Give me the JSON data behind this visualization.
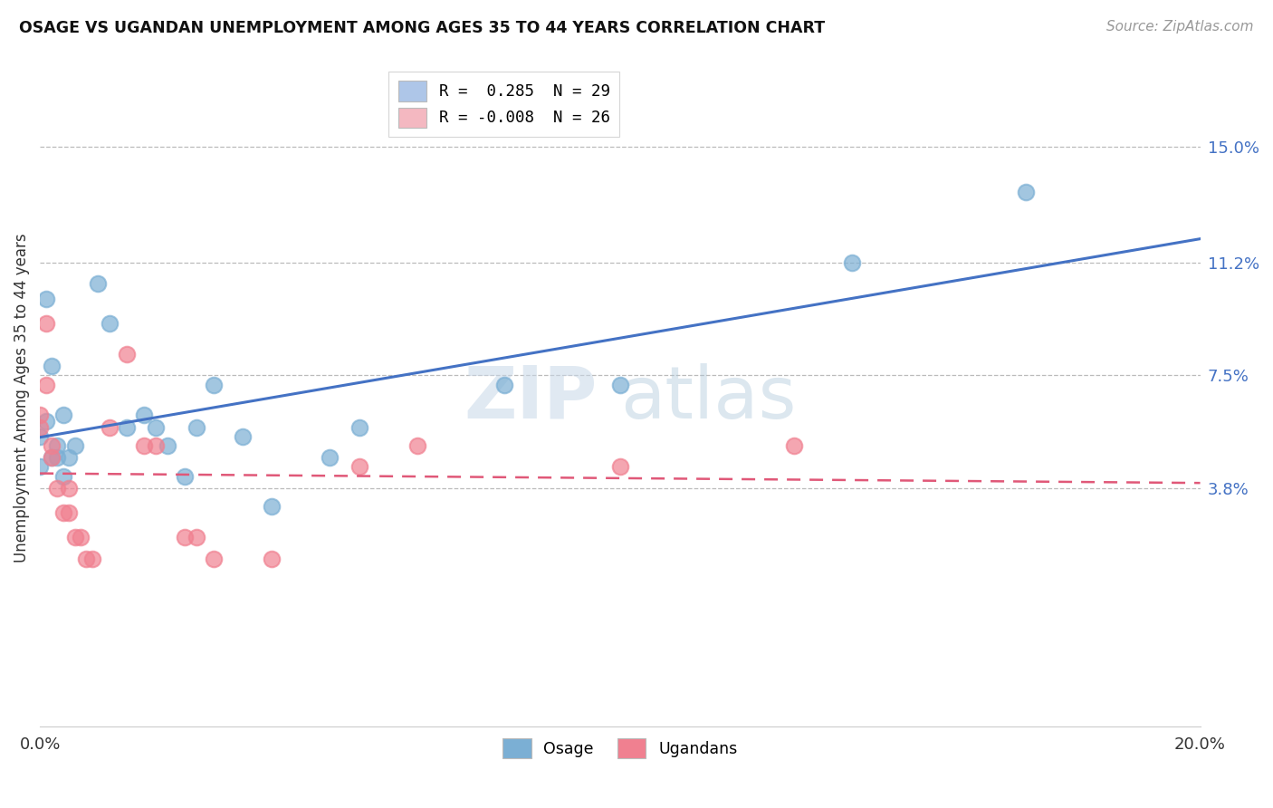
{
  "title": "OSAGE VS UGANDAN UNEMPLOYMENT AMONG AGES 35 TO 44 YEARS CORRELATION CHART",
  "source": "Source: ZipAtlas.com",
  "ylabel": "Unemployment Among Ages 35 to 44 years",
  "ytick_vals": [
    0.038,
    0.075,
    0.112,
    0.15
  ],
  "ytick_labels": [
    "3.8%",
    "7.5%",
    "11.2%",
    "15.0%"
  ],
  "xtick_vals": [
    0.0,
    0.2
  ],
  "xtick_labels": [
    "0.0%",
    "20.0%"
  ],
  "xlim": [
    0.0,
    0.2
  ],
  "ylim": [
    -0.04,
    0.175
  ],
  "legend_entries": [
    {
      "label": "R =  0.285  N = 29",
      "color": "#aec6e8"
    },
    {
      "label": "R = -0.008  N = 26",
      "color": "#f4b8c1"
    }
  ],
  "legend_bottom_labels": [
    "Osage",
    "Ugandans"
  ],
  "osage_color": "#7bafd4",
  "ugandan_color": "#f08090",
  "osage_line_color": "#4472c4",
  "ugandan_line_color": "#e05878",
  "watermark_zip": "ZIP",
  "watermark_atlas": "atlas",
  "background_color": "#ffffff",
  "grid_color": "#bbbbbb",
  "osage_points": [
    [
      0.0,
      0.055
    ],
    [
      0.0,
      0.045
    ],
    [
      0.001,
      0.1
    ],
    [
      0.001,
      0.06
    ],
    [
      0.002,
      0.078
    ],
    [
      0.002,
      0.048
    ],
    [
      0.003,
      0.052
    ],
    [
      0.003,
      0.048
    ],
    [
      0.004,
      0.062
    ],
    [
      0.004,
      0.042
    ],
    [
      0.005,
      0.048
    ],
    [
      0.006,
      0.052
    ],
    [
      0.01,
      0.105
    ],
    [
      0.012,
      0.092
    ],
    [
      0.015,
      0.058
    ],
    [
      0.018,
      0.062
    ],
    [
      0.02,
      0.058
    ],
    [
      0.022,
      0.052
    ],
    [
      0.025,
      0.042
    ],
    [
      0.027,
      0.058
    ],
    [
      0.03,
      0.072
    ],
    [
      0.035,
      0.055
    ],
    [
      0.04,
      0.032
    ],
    [
      0.05,
      0.048
    ],
    [
      0.055,
      0.058
    ],
    [
      0.08,
      0.072
    ],
    [
      0.1,
      0.072
    ],
    [
      0.14,
      0.112
    ],
    [
      0.17,
      0.135
    ]
  ],
  "ugandan_points": [
    [
      0.0,
      0.058
    ],
    [
      0.0,
      0.062
    ],
    [
      0.001,
      0.072
    ],
    [
      0.001,
      0.092
    ],
    [
      0.002,
      0.052
    ],
    [
      0.002,
      0.048
    ],
    [
      0.003,
      0.038
    ],
    [
      0.004,
      0.03
    ],
    [
      0.005,
      0.038
    ],
    [
      0.005,
      0.03
    ],
    [
      0.006,
      0.022
    ],
    [
      0.007,
      0.022
    ],
    [
      0.008,
      0.015
    ],
    [
      0.009,
      0.015
    ],
    [
      0.012,
      0.058
    ],
    [
      0.015,
      0.082
    ],
    [
      0.018,
      0.052
    ],
    [
      0.02,
      0.052
    ],
    [
      0.025,
      0.022
    ],
    [
      0.027,
      0.022
    ],
    [
      0.03,
      0.015
    ],
    [
      0.04,
      0.015
    ],
    [
      0.055,
      0.045
    ],
    [
      0.065,
      0.052
    ],
    [
      0.1,
      0.045
    ],
    [
      0.13,
      0.052
    ]
  ]
}
